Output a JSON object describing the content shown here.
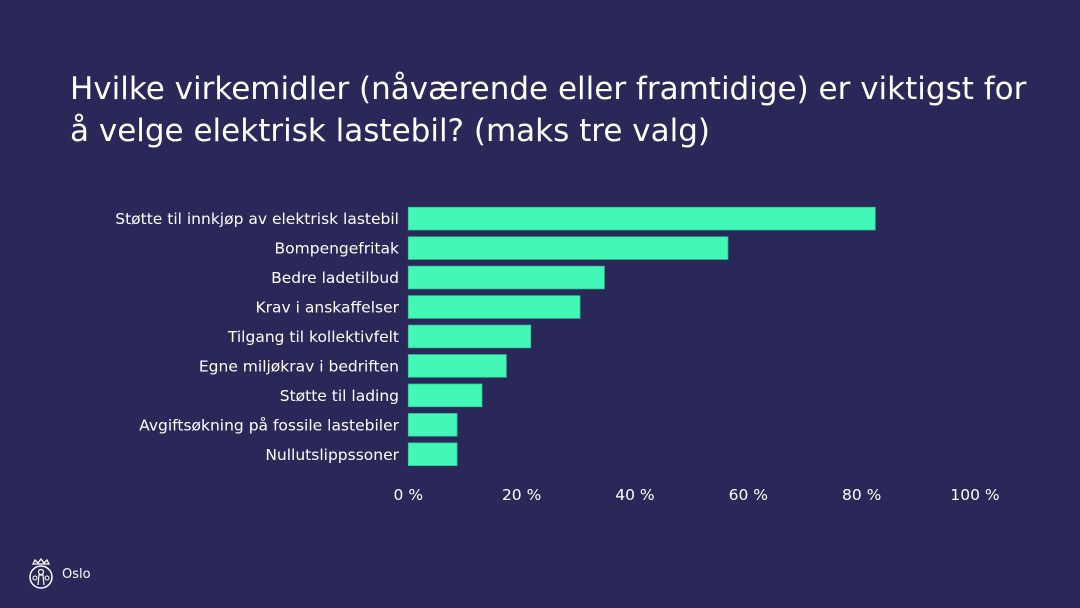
{
  "title": "Hvilke virkemidler (nåværende eller framtidige) er viktigst for å velge elektrisk lastebil? (maks tre valg)",
  "footer": {
    "logo_text": "Oslo"
  },
  "colors": {
    "background": "#2a2859",
    "bar": "#43f8b6",
    "bar_outline": "#2fc497",
    "text": "#ffffff"
  },
  "chart_data": {
    "type": "bar",
    "orientation": "horizontal",
    "categories": [
      "Støtte til innkjøp av elektrisk lastebil",
      "Bompengefritak",
      "Bedre ladetilbud",
      "Krav i anskaffelser",
      "Tilgang til kollektivfelt",
      "Egne miljøkrav i bedriften",
      "Støtte til lading",
      "Avgiftsøkning på fossile lastebiler",
      "Nullutslippssoner"
    ],
    "values": [
      82.4,
      56.4,
      34.6,
      30.3,
      21.6,
      17.3,
      13.0,
      8.6,
      8.6
    ],
    "unit": "%",
    "xlim": [
      0,
      100
    ],
    "xticks": [
      0,
      20,
      40,
      60,
      80,
      100
    ],
    "xtick_labels": [
      "0 %",
      "20 %",
      "40 %",
      "60 %",
      "80 %",
      "100 %"
    ],
    "grid": false,
    "legend": "none"
  }
}
